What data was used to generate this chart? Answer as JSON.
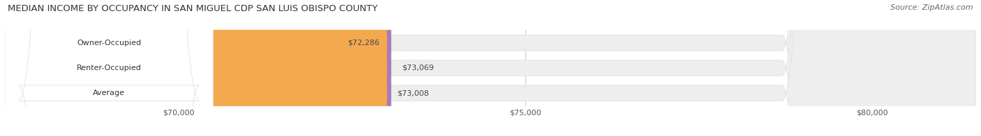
{
  "title": "MEDIAN INCOME BY OCCUPANCY IN SAN MIGUEL CDP SAN LUIS OBISPO COUNTY",
  "source": "Source: ZipAtlas.com",
  "categories": [
    "Owner-Occupied",
    "Renter-Occupied",
    "Average"
  ],
  "values": [
    72286,
    73069,
    73008
  ],
  "labels": [
    "$72,286",
    "$73,069",
    "$73,008"
  ],
  "bar_colors": [
    "#7dcfcf",
    "#a67db8",
    "#f5a94e"
  ],
  "bar_bg_color": "#eeeeee",
  "bar_border_color": "#dddddd",
  "background_color": "#ffffff",
  "label_bg_color": "#ffffff",
  "xlim_min": 67500,
  "xlim_max": 81500,
  "xticks": [
    70000,
    75000,
    80000
  ],
  "xtick_labels": [
    "$70,000",
    "$75,000",
    "$80,000"
  ],
  "title_fontsize": 9.5,
  "source_fontsize": 8,
  "label_fontsize": 8,
  "tick_fontsize": 8,
  "bar_height": 0.62,
  "bar_label_color": "#444444",
  "category_label_color": "#333333",
  "grid_color": "#cccccc",
  "rounding_size": 2800
}
